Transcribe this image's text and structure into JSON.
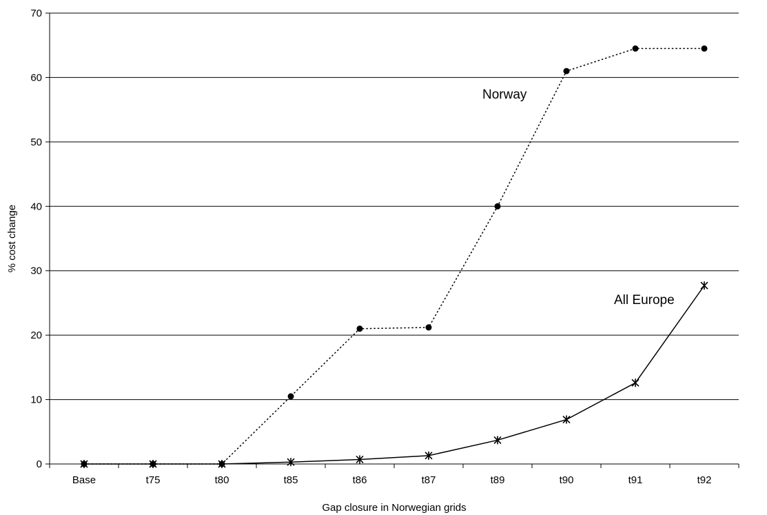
{
  "chart_data": {
    "type": "line",
    "categories": [
      "Base",
      "t75",
      "t80",
      "t85",
      "t86",
      "t87",
      "t89",
      "t90",
      "t91",
      "t92"
    ],
    "series": [
      {
        "name": "Norway",
        "values": [
          0,
          0,
          0,
          10.5,
          21.0,
          21.2,
          40.0,
          61.0,
          64.5,
          64.5
        ],
        "line_style": "dotted",
        "marker": "circle",
        "color": "#000000"
      },
      {
        "name": "All Europe",
        "values": [
          0,
          0,
          0,
          0.3,
          0.7,
          1.3,
          3.7,
          6.9,
          12.6,
          27.7
        ],
        "line_style": "solid",
        "marker": "asterisk",
        "color": "#000000"
      }
    ],
    "xlabel": "Gap closure in Norwegian grids",
    "ylabel": "% cost change",
    "ylim": [
      0,
      70
    ],
    "yticks": [
      0,
      10,
      20,
      30,
      40,
      50,
      60,
      70
    ],
    "grid": "horizontal",
    "legend": "inline labels"
  }
}
